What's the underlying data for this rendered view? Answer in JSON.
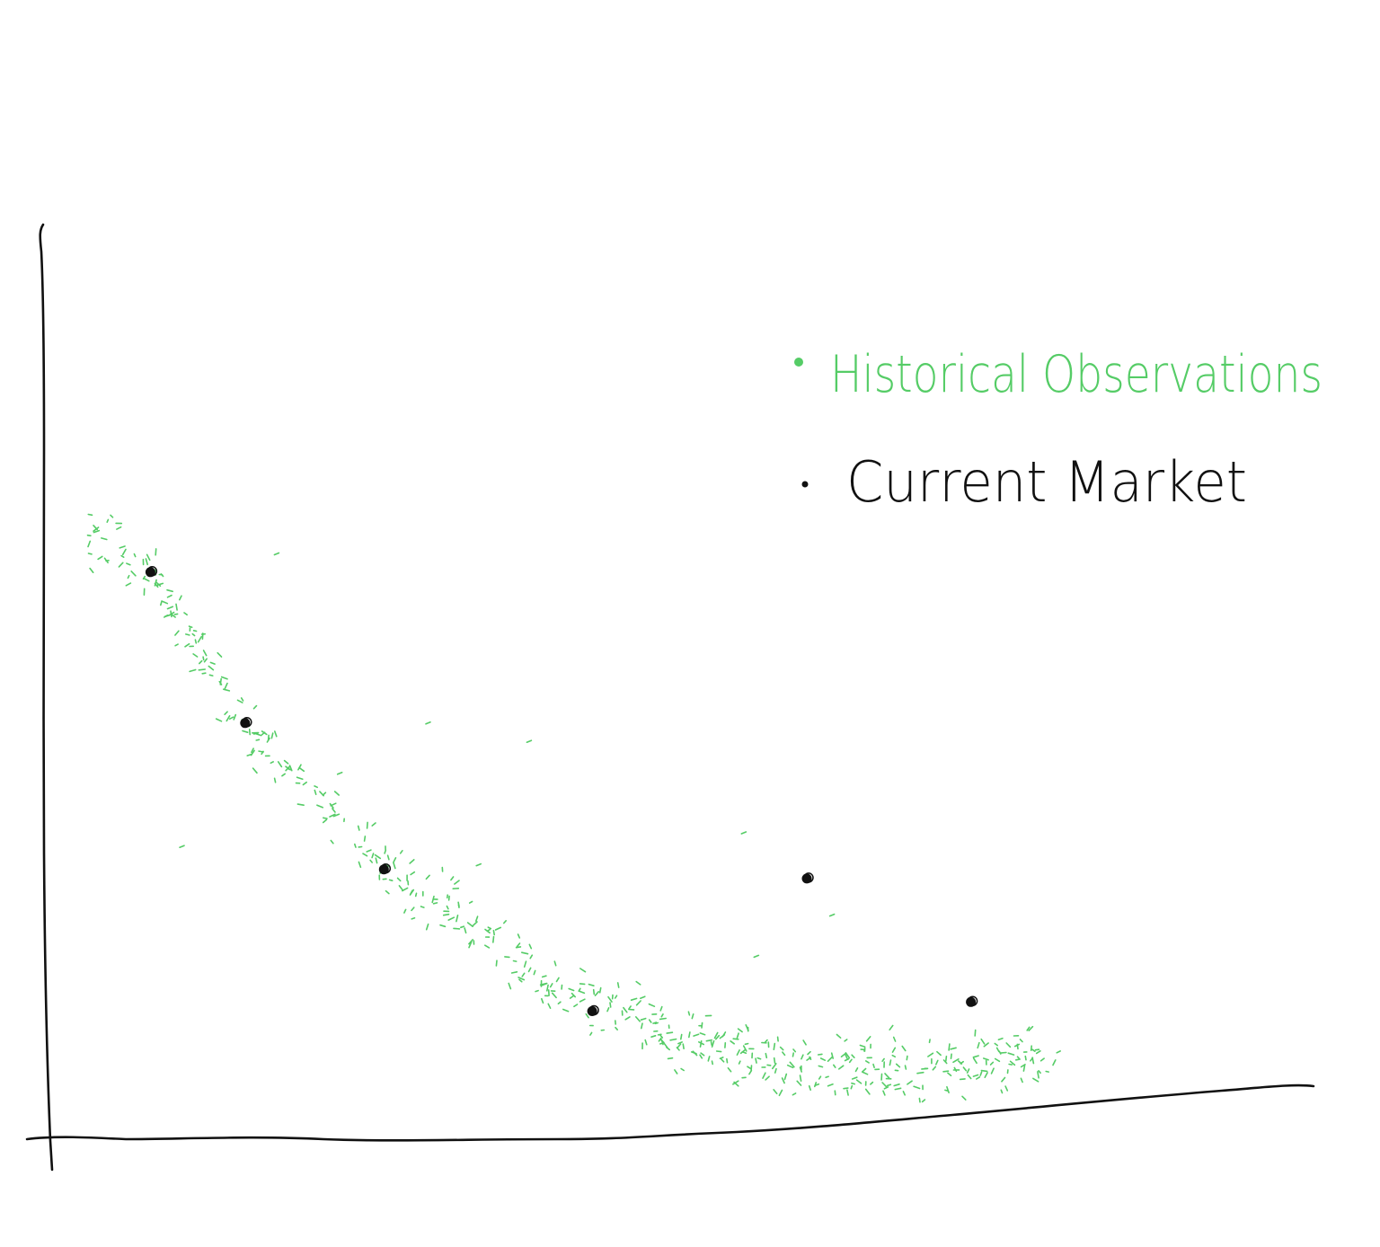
{
  "chart_data": {
    "type": "scatter",
    "title": "",
    "xlabel": "",
    "ylabel": "",
    "xlim": [
      0,
      100
    ],
    "ylim": [
      0,
      100
    ],
    "grid": false,
    "legend_position": "top-right",
    "series": [
      {
        "name": "Historical Observations",
        "color": "#55cc66",
        "marker": "small dash",
        "band": {
          "x_range": [
            3,
            80
          ],
          "center_curve": [
            [
              3,
              66
            ],
            [
              8,
              62
            ],
            [
              15,
              46
            ],
            [
              25,
              31
            ],
            [
              32,
              25
            ],
            [
              40,
              17
            ],
            [
              50,
              11
            ],
            [
              60,
              8
            ],
            [
              70,
              8
            ],
            [
              80,
              9
            ]
          ],
          "spread": 4.5,
          "point_count": 560
        }
      },
      {
        "name": "Current Market",
        "color": "#111111",
        "marker": "filled dot",
        "points": [
          {
            "x": 8,
            "y": 62
          },
          {
            "x": 15.5,
            "y": 45.5
          },
          {
            "x": 26.5,
            "y": 29.5
          },
          {
            "x": 43,
            "y": 14
          },
          {
            "x": 60,
            "y": 28.5
          },
          {
            "x": 73,
            "y": 15
          }
        ]
      }
    ]
  },
  "legend": {
    "historical_label": "Historical Observations",
    "current_label": "Current Market"
  },
  "colors": {
    "historical": "#55cc66",
    "current": "#111111",
    "axis": "#111111",
    "background": "#ffffff"
  }
}
